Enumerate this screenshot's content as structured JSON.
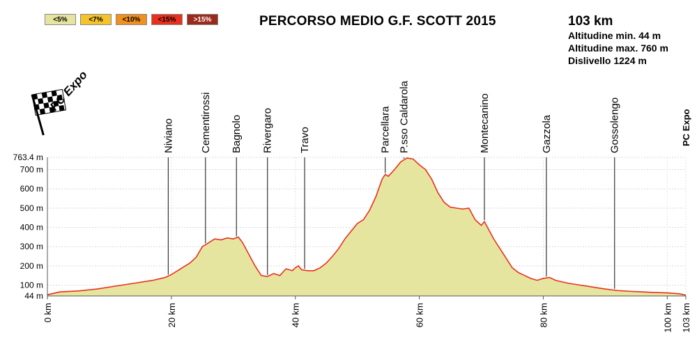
{
  "legend": [
    {
      "label": "<5%",
      "color": "#e6e59f"
    },
    {
      "label": "<7%",
      "color": "#f4c32c"
    },
    {
      "label": "<10%",
      "color": "#f0901e"
    },
    {
      "label": "<15%",
      "color": "#e8301e"
    },
    {
      "label": ">15%",
      "color": "#9a2b1c"
    }
  ],
  "title": "PERCORSO MEDIO G.F. SCOTT 2015",
  "stats": {
    "distance": "103 km",
    "alt_min": "Altitudine min. 44 m",
    "alt_max": "Altitudine max. 760 m",
    "climb": "Dislivello 1224 m"
  },
  "logo_text": "PC Expo",
  "side_logo_text": "PC Expo",
  "chart_data": {
    "type": "area",
    "title": "PERCORSO MEDIO G.F. SCOTT 2015",
    "xlabel": "",
    "ylabel": "",
    "xlim": [
      0,
      103
    ],
    "ylim": [
      44,
      763.4
    ],
    "x_ticks": [
      0,
      20,
      40,
      60,
      80,
      100,
      103
    ],
    "x_tick_labels": [
      "0 km",
      "20 km",
      "40 km",
      "60 km",
      "80 km",
      "100 km",
      "103 km"
    ],
    "y_ticks": [
      44,
      100,
      200,
      300,
      400,
      500,
      600,
      700,
      763.4
    ],
    "y_tick_labels": [
      "44 m",
      "100 m",
      "200 m",
      "300 m",
      "400 m",
      "500 m",
      "600 m",
      "700 m",
      "763.4 m"
    ],
    "grid": true,
    "fill_color": "#e6e59f",
    "line_color": "#e8301e",
    "profile": [
      [
        0,
        50
      ],
      [
        2,
        65
      ],
      [
        5,
        70
      ],
      [
        8,
        80
      ],
      [
        11,
        95
      ],
      [
        14,
        110
      ],
      [
        17,
        125
      ],
      [
        19,
        140
      ],
      [
        20,
        155
      ],
      [
        21,
        175
      ],
      [
        22,
        195
      ],
      [
        23,
        215
      ],
      [
        24,
        245
      ],
      [
        25,
        300
      ],
      [
        26,
        320
      ],
      [
        27,
        340
      ],
      [
        28,
        335
      ],
      [
        29,
        345
      ],
      [
        30,
        340
      ],
      [
        30.8,
        350
      ],
      [
        31.5,
        320
      ],
      [
        32.5,
        260
      ],
      [
        33.5,
        200
      ],
      [
        34.5,
        150
      ],
      [
        35.5,
        145
      ],
      [
        36.5,
        160
      ],
      [
        37.5,
        150
      ],
      [
        38.5,
        185
      ],
      [
        39.5,
        175
      ],
      [
        40,
        190
      ],
      [
        40.5,
        200
      ],
      [
        41,
        180
      ],
      [
        42,
        175
      ],
      [
        43,
        175
      ],
      [
        44,
        190
      ],
      [
        45,
        215
      ],
      [
        46,
        250
      ],
      [
        47,
        290
      ],
      [
        48,
        340
      ],
      [
        49,
        380
      ],
      [
        50,
        420
      ],
      [
        51,
        440
      ],
      [
        52,
        490
      ],
      [
        53,
        560
      ],
      [
        54,
        650
      ],
      [
        54.5,
        675
      ],
      [
        55,
        665
      ],
      [
        56,
        700
      ],
      [
        57,
        740
      ],
      [
        58,
        760
      ],
      [
        59,
        755
      ],
      [
        60,
        725
      ],
      [
        61,
        700
      ],
      [
        62,
        650
      ],
      [
        63,
        580
      ],
      [
        64,
        530
      ],
      [
        65,
        505
      ],
      [
        66,
        500
      ],
      [
        67,
        495
      ],
      [
        68,
        500
      ],
      [
        69,
        440
      ],
      [
        70,
        410
      ],
      [
        70.5,
        430
      ],
      [
        71,
        400
      ],
      [
        72,
        340
      ],
      [
        73,
        290
      ],
      [
        74,
        240
      ],
      [
        75,
        190
      ],
      [
        76,
        165
      ],
      [
        77,
        150
      ],
      [
        78,
        135
      ],
      [
        79,
        125
      ],
      [
        80,
        135
      ],
      [
        81,
        140
      ],
      [
        82,
        125
      ],
      [
        84,
        110
      ],
      [
        86,
        100
      ],
      [
        88,
        90
      ],
      [
        90,
        80
      ],
      [
        92,
        72
      ],
      [
        94,
        68
      ],
      [
        96,
        65
      ],
      [
        98,
        62
      ],
      [
        100,
        60
      ],
      [
        102,
        55
      ],
      [
        103,
        48
      ]
    ],
    "gradient_segments": [
      {
        "from": 22.5,
        "to": 23.0,
        "class": 1
      },
      {
        "from": 24.5,
        "to": 25.5,
        "class": 2
      },
      {
        "from": 25.5,
        "to": 26.5,
        "class": 3
      },
      {
        "from": 31.2,
        "to": 31.8,
        "class": 1
      },
      {
        "from": 31.8,
        "to": 32.6,
        "class": 2
      },
      {
        "from": 32.6,
        "to": 33.4,
        "class": 3
      },
      {
        "from": 38.3,
        "to": 38.7,
        "class": 2
      },
      {
        "from": 43.8,
        "to": 44.3,
        "class": 1
      },
      {
        "from": 46.8,
        "to": 47.4,
        "class": 1
      },
      {
        "from": 48.8,
        "to": 49.3,
        "class": 1
      },
      {
        "from": 51.5,
        "to": 52.2,
        "class": 2
      },
      {
        "from": 52.2,
        "to": 53.2,
        "class": 3
      },
      {
        "from": 53.2,
        "to": 54.3,
        "class": 2
      },
      {
        "from": 55.6,
        "to": 56.5,
        "class": 2
      },
      {
        "from": 56.5,
        "to": 57.3,
        "class": 1
      },
      {
        "from": 59.3,
        "to": 60.0,
        "class": 1
      },
      {
        "from": 61.2,
        "to": 62.0,
        "class": 2
      },
      {
        "from": 62.0,
        "to": 62.6,
        "class": 3
      },
      {
        "from": 63.0,
        "to": 63.7,
        "class": 1
      },
      {
        "from": 68.6,
        "to": 69.2,
        "class": 2
      },
      {
        "from": 69.2,
        "to": 69.8,
        "class": 3
      },
      {
        "from": 71.2,
        "to": 72.0,
        "class": 2
      },
      {
        "from": 72.0,
        "to": 72.8,
        "class": 3
      },
      {
        "from": 73.0,
        "to": 73.6,
        "class": 2
      },
      {
        "from": 74.6,
        "to": 75.2,
        "class": 1
      }
    ],
    "waypoints": [
      {
        "name": "Niviano",
        "km": 19.5
      },
      {
        "name": "Cementirossi",
        "km": 25.5
      },
      {
        "name": "Bagnolo",
        "km": 30.5
      },
      {
        "name": "Rivergaro",
        "km": 35.5
      },
      {
        "name": "Travo",
        "km": 41.5
      },
      {
        "name": "Parcellara",
        "km": 54.5
      },
      {
        "name": "P.sso Caldarola",
        "km": 57.5
      },
      {
        "name": "Montecanino",
        "km": 70.5
      },
      {
        "name": "Gazzola",
        "km": 80.5
      },
      {
        "name": "Gossolengo",
        "km": 91.5
      }
    ]
  }
}
